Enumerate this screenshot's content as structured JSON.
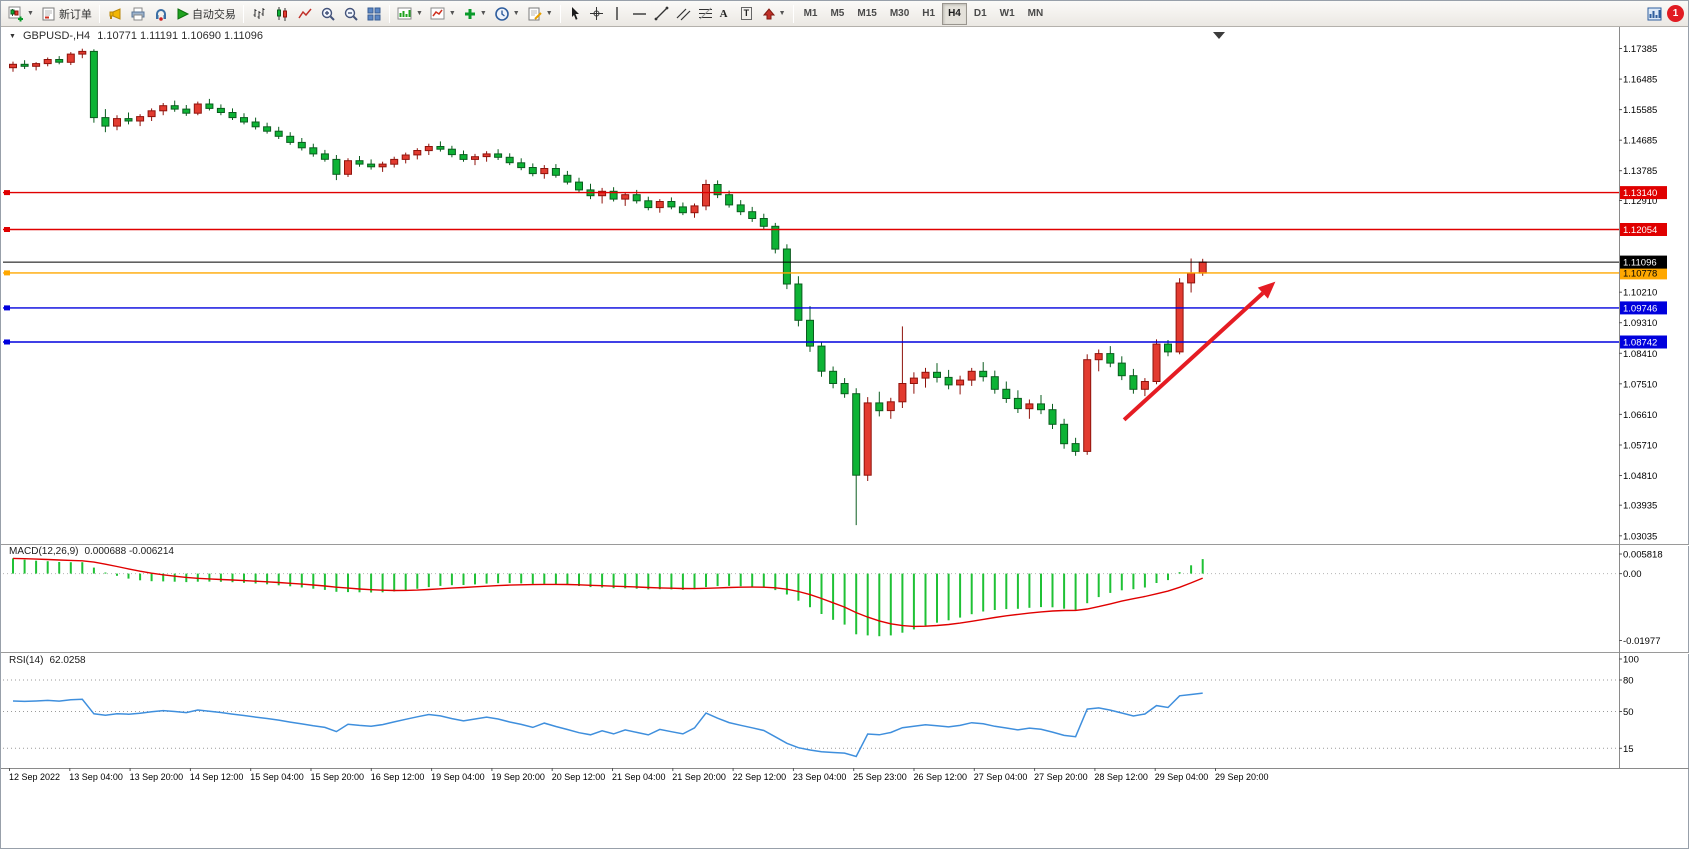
{
  "toolbar": {
    "new_order": "新订单",
    "autotrade": "自动交易",
    "timeframes": [
      "M1",
      "M5",
      "M15",
      "M30",
      "H1",
      "H4",
      "D1",
      "W1",
      "MN"
    ],
    "active_timeframe": "H4",
    "notification": "1"
  },
  "chart_data": [
    {
      "type": "candlestick",
      "title": "GBPUSD-,H4",
      "ohlc_display": "1.10771 1.11191 1.10690 1.11096",
      "timeframe": "H4",
      "ylim": [
        1.03,
        1.179
      ],
      "grid": false,
      "bull_color": "#e23b30",
      "bull_stroke": "#8f130c",
      "bear_color": "#0db335",
      "bear_stroke": "#0a5c1e",
      "y_ticks": [
        "1.17385",
        "1.16485",
        "1.15585",
        "1.14685",
        "1.13785",
        "1.12910",
        "1.10210",
        "1.09310",
        "1.08410",
        "1.07510",
        "1.06610",
        "1.05710",
        "1.04810",
        "1.03935",
        "1.03035"
      ],
      "x_labels": [
        "12 Sep 2022",
        "13 Sep 04:00",
        "13 Sep 20:00",
        "14 Sep 12:00",
        "15 Sep 04:00",
        "15 Sep 20:00",
        "16 Sep 12:00",
        "19 Sep 04:00",
        "19 Sep 20:00",
        "20 Sep 12:00",
        "21 Sep 04:00",
        "21 Sep 20:00",
        "22 Sep 12:00",
        "23 Sep 04:00",
        "25 Sep 23:00",
        "26 Sep 12:00",
        "27 Sep 04:00",
        "27 Sep 20:00",
        "28 Sep 12:00",
        "29 Sep 04:00",
        "29 Sep 20:00"
      ],
      "hlines": [
        {
          "value": 1.1314,
          "label": "1.13140",
          "color": "#e00000",
          "text_color": "#ffffff"
        },
        {
          "value": 1.12054,
          "label": "1.12054",
          "color": "#e00000",
          "text_color": "#ffffff"
        },
        {
          "value": 1.10778,
          "label": "1.10778",
          "color": "#ffa800",
          "text_color": "#000000"
        },
        {
          "value": 1.09746,
          "label": "1.09746",
          "color": "#0000dd",
          "text_color": "#ffffff"
        },
        {
          "value": 1.08742,
          "label": "1.08742",
          "color": "#0000dd",
          "text_color": "#ffffff"
        }
      ],
      "current_price": {
        "value": 1.11096,
        "label": "1.11096",
        "color": "#000000",
        "text_color": "#ffffff"
      },
      "arrow": {
        "from_i": 96.2,
        "from_p": 1.0645,
        "to_i": 109.3,
        "to_p": 1.1052,
        "color": "#e51c23"
      },
      "ohlc": [
        [
          1.1682,
          1.17,
          1.167,
          1.1692
        ],
        [
          1.1692,
          1.1704,
          1.1678,
          1.1686
        ],
        [
          1.1686,
          1.1698,
          1.1674,
          1.1694
        ],
        [
          1.1694,
          1.1712,
          1.1686,
          1.1706
        ],
        [
          1.1706,
          1.1716,
          1.1692,
          1.1698
        ],
        [
          1.1698,
          1.1728,
          1.169,
          1.1722
        ],
        [
          1.1722,
          1.1738,
          1.171,
          1.173
        ],
        [
          1.173,
          1.1736,
          1.152,
          1.1535
        ],
        [
          1.1535,
          1.156,
          1.1492,
          1.151
        ],
        [
          1.151,
          1.1542,
          1.1498,
          1.1532
        ],
        [
          1.1532,
          1.155,
          1.1515,
          1.1525
        ],
        [
          1.1525,
          1.1545,
          1.151,
          1.1538
        ],
        [
          1.1538,
          1.1562,
          1.1525,
          1.1555
        ],
        [
          1.1555,
          1.1578,
          1.1542,
          1.157
        ],
        [
          1.157,
          1.1585,
          1.1552,
          1.156
        ],
        [
          1.156,
          1.1572,
          1.154,
          1.1548
        ],
        [
          1.1548,
          1.1582,
          1.1542,
          1.1575
        ],
        [
          1.1575,
          1.159,
          1.1556,
          1.1562
        ],
        [
          1.1562,
          1.1574,
          1.1542,
          1.155
        ],
        [
          1.155,
          1.1562,
          1.1528,
          1.1535
        ],
        [
          1.1535,
          1.1548,
          1.1515,
          1.1522
        ],
        [
          1.1522,
          1.1535,
          1.15,
          1.1508
        ],
        [
          1.1508,
          1.152,
          1.1488,
          1.1495
        ],
        [
          1.1495,
          1.1508,
          1.1472,
          1.148
        ],
        [
          1.148,
          1.1492,
          1.1455,
          1.1462
        ],
        [
          1.1462,
          1.1475,
          1.1438,
          1.1446
        ],
        [
          1.1446,
          1.1458,
          1.142,
          1.1428
        ],
        [
          1.1428,
          1.144,
          1.1405,
          1.1412
        ],
        [
          1.1412,
          1.1425,
          1.1351,
          1.1368
        ],
        [
          1.1368,
          1.1415,
          1.136,
          1.1408
        ],
        [
          1.1408,
          1.1422,
          1.139,
          1.1398
        ],
        [
          1.1398,
          1.1412,
          1.1382,
          1.139
        ],
        [
          1.139,
          1.1405,
          1.1375,
          1.1398
        ],
        [
          1.1398,
          1.142,
          1.1388,
          1.1412
        ],
        [
          1.1412,
          1.1432,
          1.14,
          1.1425
        ],
        [
          1.1425,
          1.1445,
          1.1412,
          1.1438
        ],
        [
          1.1438,
          1.1458,
          1.1425,
          1.145
        ],
        [
          1.145,
          1.1465,
          1.1435,
          1.1442
        ],
        [
          1.1442,
          1.1452,
          1.1418,
          1.1426
        ],
        [
          1.1426,
          1.1438,
          1.1405,
          1.1412
        ],
        [
          1.1412,
          1.1428,
          1.1395,
          1.142
        ],
        [
          1.142,
          1.1436,
          1.1405,
          1.1428
        ],
        [
          1.1428,
          1.1442,
          1.141,
          1.1418
        ],
        [
          1.1418,
          1.143,
          1.1395,
          1.1402
        ],
        [
          1.1402,
          1.1415,
          1.138,
          1.1388
        ],
        [
          1.1388,
          1.14,
          1.1362,
          1.137
        ],
        [
          1.137,
          1.1395,
          1.1355,
          1.1385
        ],
        [
          1.1385,
          1.1398,
          1.1358,
          1.1365
        ],
        [
          1.1365,
          1.1378,
          1.1338,
          1.1345
        ],
        [
          1.1345,
          1.1358,
          1.1315,
          1.1322
        ],
        [
          1.1322,
          1.134,
          1.1295,
          1.1305
        ],
        [
          1.1305,
          1.1328,
          1.1282,
          1.1318
        ],
        [
          1.1318,
          1.133,
          1.1288,
          1.1295
        ],
        [
          1.1295,
          1.1315,
          1.1275,
          1.1308
        ],
        [
          1.1308,
          1.1322,
          1.1282,
          1.129
        ],
        [
          1.129,
          1.1302,
          1.1262,
          1.127
        ],
        [
          1.127,
          1.1295,
          1.1255,
          1.1288
        ],
        [
          1.1288,
          1.13,
          1.1265,
          1.1272
        ],
        [
          1.1272,
          1.1285,
          1.1248,
          1.1255
        ],
        [
          1.1255,
          1.1282,
          1.124,
          1.1275
        ],
        [
          1.1275,
          1.1352,
          1.1262,
          1.1338
        ],
        [
          1.1338,
          1.135,
          1.1298,
          1.1308
        ],
        [
          1.1308,
          1.132,
          1.127,
          1.1278
        ],
        [
          1.1278,
          1.1292,
          1.1248,
          1.1258
        ],
        [
          1.1258,
          1.1272,
          1.1228,
          1.1238
        ],
        [
          1.1238,
          1.1252,
          1.1205,
          1.1215
        ],
        [
          1.1215,
          1.1225,
          1.1135,
          1.1148
        ],
        [
          1.1148,
          1.1162,
          1.103,
          1.1045
        ],
        [
          1.1045,
          1.1068,
          1.092,
          1.0938
        ],
        [
          1.0938,
          1.098,
          1.0845,
          1.0862
        ],
        [
          1.0862,
          1.0875,
          1.0772,
          1.0788
        ],
        [
          1.0788,
          1.0802,
          1.0738,
          1.0752
        ],
        [
          1.0752,
          1.0768,
          1.071,
          1.0722
        ],
        [
          1.0722,
          1.0738,
          1.0335,
          1.0482
        ],
        [
          1.0482,
          1.0712,
          1.0465,
          1.0695
        ],
        [
          1.0695,
          1.0728,
          1.0655,
          1.0672
        ],
        [
          1.0672,
          1.071,
          1.0648,
          1.0698
        ],
        [
          1.0698,
          1.092,
          1.068,
          1.0752
        ],
        [
          1.0752,
          1.0785,
          1.0722,
          1.0768
        ],
        [
          1.0768,
          1.0798,
          1.074,
          1.0785
        ],
        [
          1.0785,
          1.0812,
          1.0755,
          1.077
        ],
        [
          1.077,
          1.0792,
          1.0735,
          1.0748
        ],
        [
          1.0748,
          1.0775,
          1.072,
          1.0762
        ],
        [
          1.0762,
          1.0798,
          1.0745,
          1.0788
        ],
        [
          1.0788,
          1.0815,
          1.0758,
          1.0772
        ],
        [
          1.0772,
          1.079,
          1.0722,
          1.0735
        ],
        [
          1.0735,
          1.0758,
          1.0695,
          1.0708
        ],
        [
          1.0708,
          1.0732,
          1.0665,
          1.0678
        ],
        [
          1.0678,
          1.0705,
          1.0648,
          1.0692
        ],
        [
          1.0692,
          1.0718,
          1.0662,
          1.0675
        ],
        [
          1.0675,
          1.0692,
          1.0618,
          1.0632
        ],
        [
          1.0632,
          1.0648,
          1.056,
          1.0575
        ],
        [
          1.0575,
          1.0592,
          1.0539,
          1.0552
        ],
        [
          1.0552,
          1.0838,
          1.0542,
          1.0822
        ],
        [
          1.0822,
          1.0852,
          1.0788,
          1.084
        ],
        [
          1.084,
          1.0862,
          1.08,
          1.0812
        ],
        [
          1.0812,
          1.0832,
          1.0762,
          1.0775
        ],
        [
          1.0775,
          1.0795,
          1.0722,
          1.0735
        ],
        [
          1.0735,
          1.0768,
          1.0715,
          1.0758
        ],
        [
          1.0758,
          1.0882,
          1.075,
          1.0868
        ],
        [
          1.0868,
          1.088,
          1.0832,
          1.0845
        ],
        [
          1.0845,
          1.1062,
          1.0838,
          1.1048
        ],
        [
          1.1048,
          1.112,
          1.102,
          1.1077
        ],
        [
          1.10771,
          1.11191,
          1.1069,
          1.11096
        ]
      ]
    },
    {
      "type": "macd",
      "label": "MACD(12,26,9)",
      "values": "0.000688 -0.006214",
      "params": [
        12,
        26,
        9
      ],
      "ylim": [
        -0.022,
        0.0064
      ],
      "y_ticks": [
        "0.005818",
        "0.00",
        "-0.01977"
      ],
      "hist_color": "#1fc135",
      "signal_color": "#e00000"
    },
    {
      "type": "rsi",
      "label": "RSI(14)",
      "value": "62.0258",
      "period": 14,
      "ylim": [
        0,
        100
      ],
      "levels": [
        80,
        50,
        15
      ],
      "y_ticks": [
        "100",
        "80",
        "50",
        "15"
      ],
      "line_color": "#3f8fdd"
    }
  ]
}
